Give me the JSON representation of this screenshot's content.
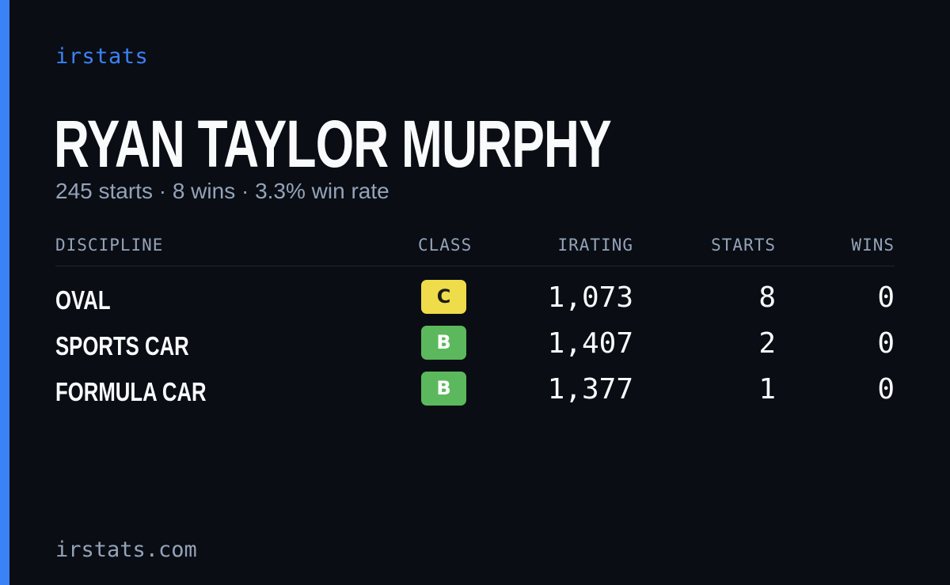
{
  "brand": "irstats",
  "driver": {
    "name": "RYAN TAYLOR MURPHY",
    "summary": "245 starts · 8 wins · 3.3% win rate"
  },
  "table": {
    "headers": {
      "discipline": "DISCIPLINE",
      "class": "CLASS",
      "irating": "IRATING",
      "starts": "STARTS",
      "wins": "WINS"
    },
    "rows": [
      {
        "discipline": "OVAL",
        "class": "C",
        "class_color": "#eedc4a",
        "class_text_color": "#1a1a1a",
        "irating": "1,073",
        "starts": "8",
        "wins": "0"
      },
      {
        "discipline": "SPORTS CAR",
        "class": "B",
        "class_color": "#5cb85c",
        "class_text_color": "#ffffff",
        "irating": "1,407",
        "starts": "2",
        "wins": "0"
      },
      {
        "discipline": "FORMULA CAR",
        "class": "B",
        "class_color": "#5cb85c",
        "class_text_color": "#ffffff",
        "irating": "1,377",
        "starts": "1",
        "wins": "0"
      }
    ]
  },
  "footer": "irstats.com",
  "colors": {
    "background": "#0a0d14",
    "accent": "#3b82f6",
    "text": "#f8fafc",
    "muted": "#94a3b8"
  }
}
